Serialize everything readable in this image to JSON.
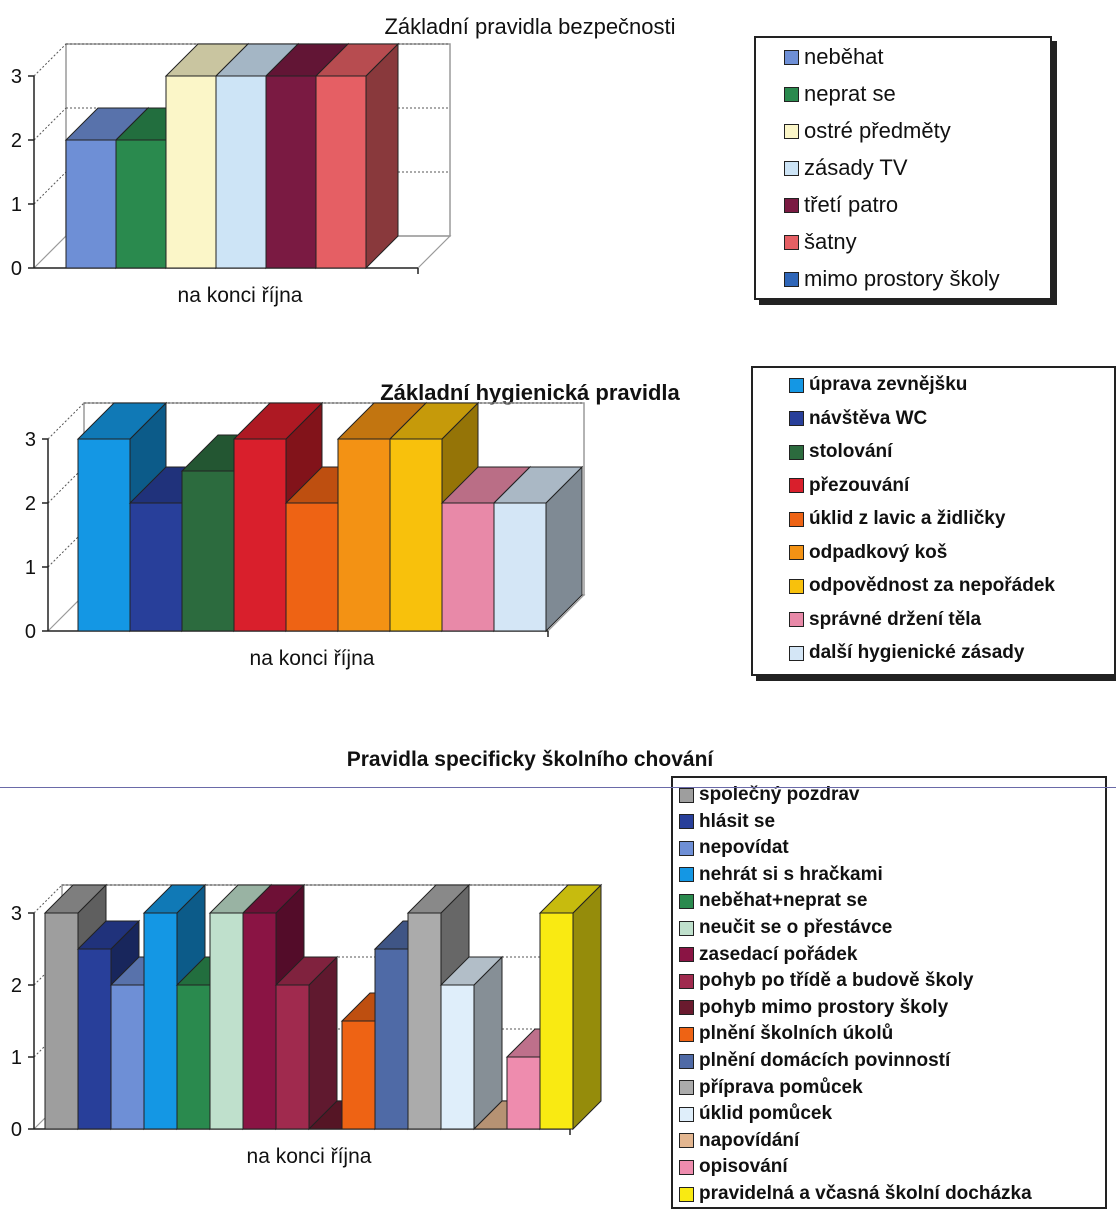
{
  "chart_data": [
    {
      "type": "bar",
      "title": "Základní pravidla bezpečnosti",
      "categories": [
        "na konci října"
      ],
      "series": [
        {
          "name": "neběhat",
          "values": [
            2
          ],
          "color": "#6e8fd6"
        },
        {
          "name": "neprat se",
          "values": [
            2
          ],
          "color": "#2a8a4e"
        },
        {
          "name": "ostré předměty",
          "values": [
            3
          ],
          "color": "#fbf6c8"
        },
        {
          "name": "zásady TV",
          "values": [
            3
          ],
          "color": "#cde4f6"
        },
        {
          "name": "třetí patro",
          "values": [
            3
          ],
          "color": "#7a1a42"
        },
        {
          "name": "šatny",
          "values": [
            3
          ],
          "color": "#e55f64"
        },
        {
          "name": "mimo prostory školy",
          "values": [
            null
          ],
          "color": "#2f66b8"
        }
      ],
      "yticks": [
        "0",
        "1",
        "2",
        "3"
      ],
      "ylim": [
        0,
        3
      ],
      "grid": true,
      "legend_position": "right"
    },
    {
      "type": "bar",
      "title": "Základní hygienická pravidla",
      "categories": [
        "na konci října"
      ],
      "series": [
        {
          "name": "úprava zevnějšku",
          "values": [
            3
          ],
          "color": "#1497e4"
        },
        {
          "name": "návštěva WC",
          "values": [
            2
          ],
          "color": "#283f9a"
        },
        {
          "name": "stolování",
          "values": [
            2.5
          ],
          "color": "#2c6b3e"
        },
        {
          "name": "přezouvání",
          "values": [
            3
          ],
          "color": "#d91f2c"
        },
        {
          "name": "úklid z lavic a židličky",
          "values": [
            2
          ],
          "color": "#ee6314"
        },
        {
          "name": "odpadkový koš",
          "values": [
            3
          ],
          "color": "#f39214"
        },
        {
          "name": "odpovědnost za nepořádek",
          "values": [
            3
          ],
          "color": "#f8c10c"
        },
        {
          "name": "správné držení těla",
          "values": [
            2
          ],
          "color": "#e889a8"
        },
        {
          "name": "další hygienické zásady",
          "values": [
            2
          ],
          "color": "#d4e6f6"
        }
      ],
      "yticks": [
        "0",
        "1",
        "2",
        "3"
      ],
      "ylim": [
        0,
        3
      ],
      "grid": true,
      "legend_position": "right"
    },
    {
      "type": "bar",
      "title": "Pravidla specificky školního chování",
      "categories": [
        "na konci října"
      ],
      "series": [
        {
          "name": "společný pozdrav",
          "values": [
            3
          ],
          "color": "#9e9e9e"
        },
        {
          "name": "hlásit se",
          "values": [
            2.5
          ],
          "color": "#283f9a"
        },
        {
          "name": "nepovídat",
          "values": [
            2
          ],
          "color": "#6e8fd6"
        },
        {
          "name": "nehrát si s hračkami",
          "values": [
            3
          ],
          "color": "#1497e4"
        },
        {
          "name": "neběhat+neprat se",
          "values": [
            2
          ],
          "color": "#2a8a4e"
        },
        {
          "name": "neučit se o přestávce",
          "values": [
            3
          ],
          "color": "#bfe0cc"
        },
        {
          "name": "zasedací pořádek",
          "values": [
            3
          ],
          "color": "#8a1444"
        },
        {
          "name": "pohyb po třídě a budově školy",
          "values": [
            2
          ],
          "color": "#a02a4e"
        },
        {
          "name": "pohyb mimo prostory školy",
          "values": [
            0
          ],
          "color": "#6a1a2e"
        },
        {
          "name": "plnění školních úkolů",
          "values": [
            1.5
          ],
          "color": "#ee6314"
        },
        {
          "name": "plnění domácích povinností",
          "values": [
            2.5
          ],
          "color": "#4f6aa6"
        },
        {
          "name": "příprava pomůcek",
          "values": [
            3
          ],
          "color": "#ababab"
        },
        {
          "name": "úklid pomůcek",
          "values": [
            2
          ],
          "color": "#dfeefa"
        },
        {
          "name": "napovídání",
          "values": [
            0
          ],
          "color": "#e3b690"
        },
        {
          "name": "opisování",
          "values": [
            1
          ],
          "color": "#ee8cae"
        },
        {
          "name": "pravidelná a včasná školní docházka",
          "values": [
            3
          ],
          "color": "#f9ea12"
        }
      ],
      "yticks": [
        "0",
        "1",
        "2",
        "3"
      ],
      "ylim": [
        0,
        3
      ],
      "grid": true,
      "legend_position": "right"
    }
  ]
}
